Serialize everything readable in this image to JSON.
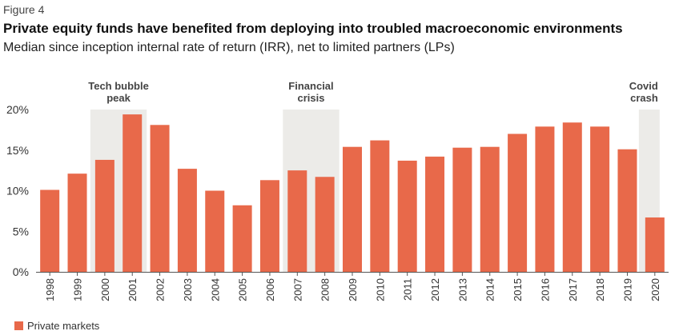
{
  "figure_label": "Figure 4",
  "title": "Private equity funds have benefited from deploying into troubled macroeconomic environments",
  "subtitle": "Median since inception internal rate of return (IRR), net to limited partners (LPs)",
  "colors": {
    "bar": "#e8694a",
    "shade": "#ecebe8",
    "axis": "#555555",
    "text": "#333333"
  },
  "chart_data": {
    "type": "bar",
    "categories": [
      "1998",
      "1999",
      "2000",
      "2001",
      "2002",
      "2003",
      "2004",
      "2005",
      "2006",
      "2007",
      "2008",
      "2009",
      "2010",
      "2011",
      "2012",
      "2013",
      "2014",
      "2015",
      "2016",
      "2017",
      "2018",
      "2019",
      "2020"
    ],
    "series": [
      {
        "name": "Private markets",
        "values": [
          10.1,
          12.1,
          13.8,
          19.4,
          18.1,
          12.7,
          10.0,
          8.2,
          11.3,
          12.5,
          11.7,
          15.4,
          16.2,
          13.7,
          14.2,
          15.3,
          15.4,
          17.0,
          17.9,
          18.4,
          17.9,
          15.1,
          6.7
        ]
      }
    ],
    "ylim": [
      0,
      20
    ],
    "yticks": [
      0,
      5,
      10,
      15,
      20
    ],
    "ytick_labels": [
      "0%",
      "5%",
      "10%",
      "15%",
      "20%"
    ],
    "gridlines": false,
    "legend_position": "bottom-left",
    "annotations": [
      {
        "label_lines": [
          "Tech bubble",
          "peak"
        ],
        "from": "2000",
        "to": "2001"
      },
      {
        "label_lines": [
          "Financial",
          "crisis"
        ],
        "from": "2007",
        "to": "2008"
      },
      {
        "label_lines": [
          "Covid",
          "crash"
        ],
        "from": "2020",
        "to": "2020"
      }
    ]
  }
}
